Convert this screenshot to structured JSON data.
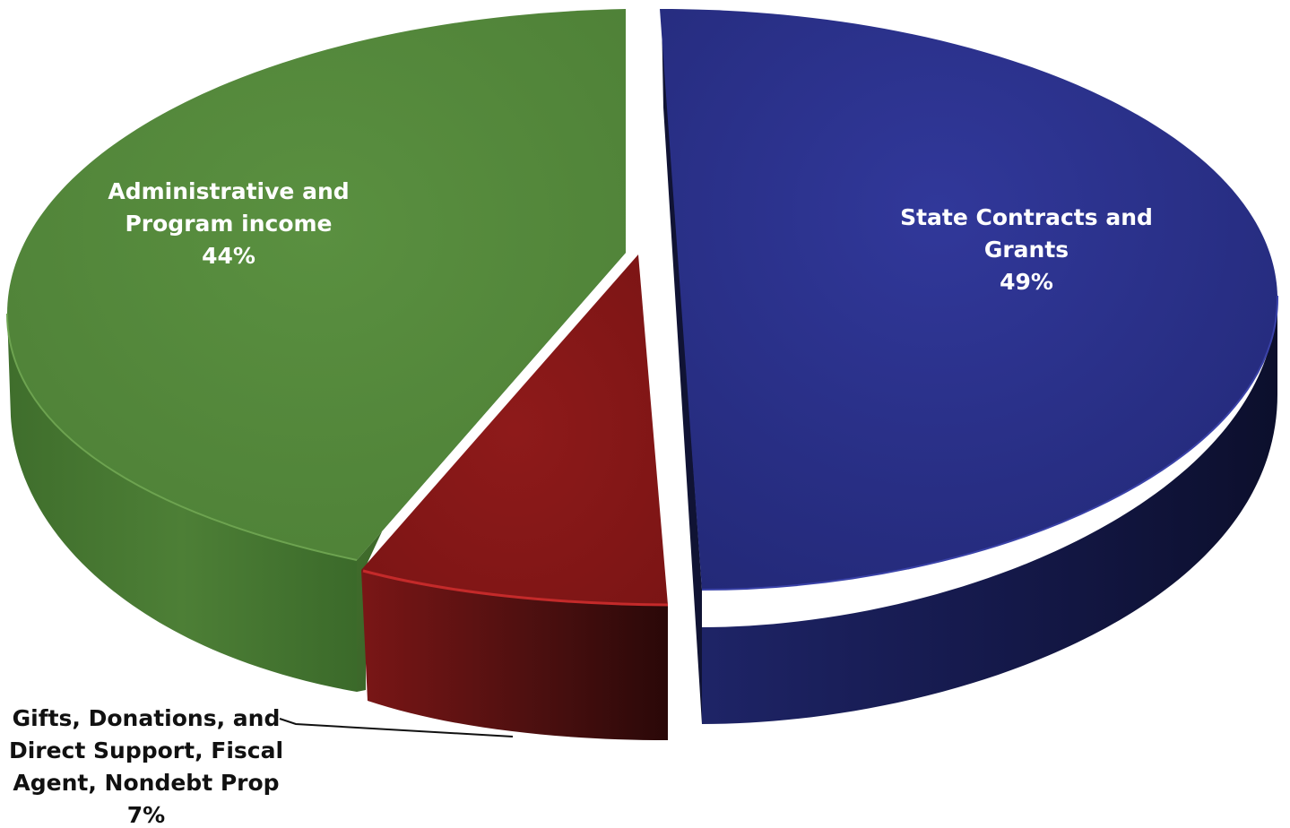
{
  "chart_data": {
    "type": "pie",
    "style": "3d-exploded",
    "slices": [
      {
        "label": [
          "State Contracts and",
          "Grants"
        ],
        "pct_label": "49%",
        "value": 49,
        "color": "#2b3088"
      },
      {
        "label": [
          "Gifts, Donations, and",
          "Direct Support, Fiscal",
          "Agent, Nondebt Prop"
        ],
        "pct_label": "7%",
        "value": 7,
        "color": "#8b1a1a"
      },
      {
        "label": [
          "Administrative and",
          "Program income"
        ],
        "pct_label": "44%",
        "value": 44,
        "color": "#558a3b"
      }
    ],
    "legend": "none",
    "labels": "data labels with leader line for small slice"
  }
}
